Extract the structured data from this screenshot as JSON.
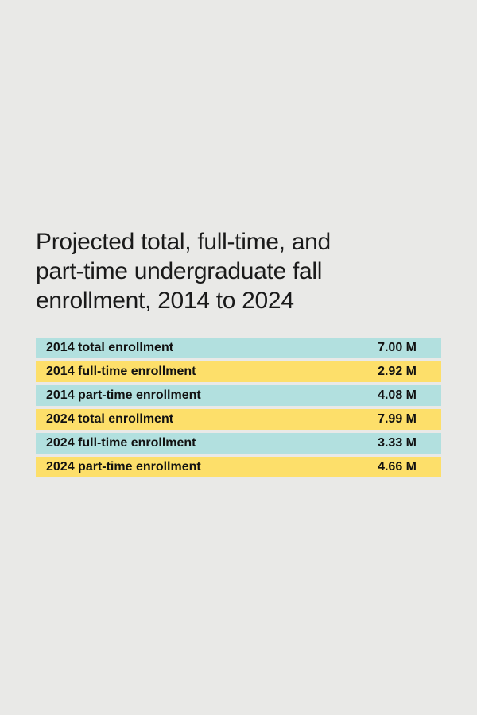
{
  "header": {
    "title_lines": [
      "Projected total, full-time, and",
      "part-time undergraduate fall",
      "enrollment, 2014 to 2024"
    ]
  },
  "table": {
    "rows": [
      [
        "2014 total enrollment",
        "7.00 M"
      ],
      [
        "2014 full-time enrollment",
        "2.92 M"
      ],
      [
        "2014 part-time enrollment",
        "4.08 M"
      ],
      [
        "2024 total enrollment",
        "7.99 M"
      ],
      [
        "2024 full-time enrollment",
        "3.33 M"
      ],
      [
        "2024 part-time enrollment",
        "4.66 M"
      ]
    ]
  }
}
